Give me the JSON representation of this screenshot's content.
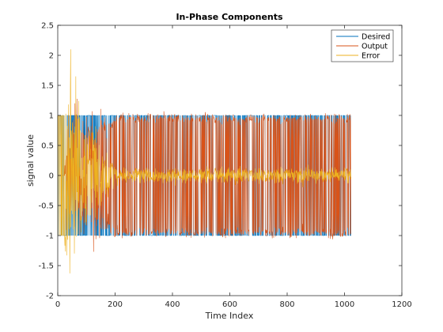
{
  "chart_data": {
    "type": "line",
    "title": "In-Phase Components",
    "xlabel": "Time Index",
    "ylabel": "signal value",
    "xlim": [
      0,
      1200
    ],
    "ylim": [
      -2,
      2.5
    ],
    "xticks": [
      "0",
      "200",
      "400",
      "600",
      "800",
      "1000",
      "1200"
    ],
    "yticks": [
      "-2",
      "-1.5",
      "-1",
      "-0.5",
      "0",
      "0.5",
      "1",
      "1.5",
      "2",
      "2.5"
    ],
    "grid": false,
    "legend_position": "top-right",
    "n_samples": 1024,
    "series": [
      {
        "name": "Desired",
        "color": "#0072BD",
        "description_values": "random binary symbols: +1 / -1",
        "range": [
          -1,
          1
        ]
      },
      {
        "name": "Output",
        "color": "#D95319",
        "range": [
          -1.27,
          1.22
        ],
        "approx_points": [
          [
            0,
            0
          ],
          [
            40,
            -0.9
          ],
          [
            60,
            1.2
          ],
          [
            120,
            -1.1
          ],
          [
            300,
            1.1
          ],
          [
            600,
            -1.2
          ],
          [
            1000,
            1.0
          ]
        ]
      },
      {
        "name": "Error",
        "color": "#EDB120",
        "range": [
          -1.63,
          2.1
        ],
        "peak": [
          45,
          2.1
        ],
        "trough": [
          42,
          -1.63
        ],
        "steady_state_band": [
          -0.3,
          0.3
        ]
      }
    ]
  }
}
